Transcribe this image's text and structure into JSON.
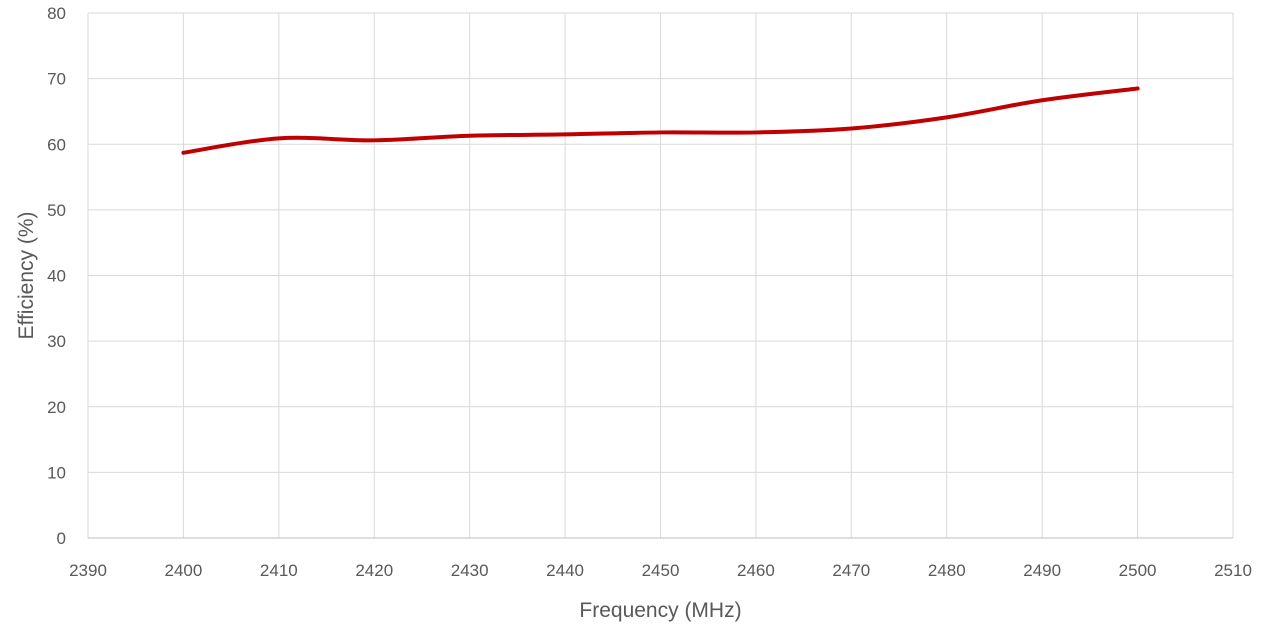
{
  "chart_data": {
    "type": "line",
    "title": "",
    "xlabel": "Frequency (MHz)",
    "ylabel": "Efficiency (%)",
    "xlim": [
      2390,
      2510
    ],
    "ylim": [
      0,
      80
    ],
    "xticks": [
      2390,
      2400,
      2410,
      2420,
      2430,
      2440,
      2450,
      2460,
      2470,
      2480,
      2490,
      2500,
      2510
    ],
    "yticks": [
      0,
      10,
      20,
      30,
      40,
      50,
      60,
      70,
      80
    ],
    "grid": true,
    "legend": "none",
    "series": [
      {
        "color": "#C00000",
        "smooth": true,
        "x": [
          2400,
          2410,
          2420,
          2430,
          2440,
          2450,
          2460,
          2470,
          2480,
          2490,
          2500
        ],
        "y": [
          58.7,
          60.9,
          60.6,
          61.3,
          61.5,
          61.8,
          61.8,
          62.4,
          64.1,
          66.7,
          68.5
        ]
      }
    ]
  },
  "colors": {
    "grid": "#D9D9D9",
    "axis": "#BFBFBF",
    "text": "#595959"
  }
}
